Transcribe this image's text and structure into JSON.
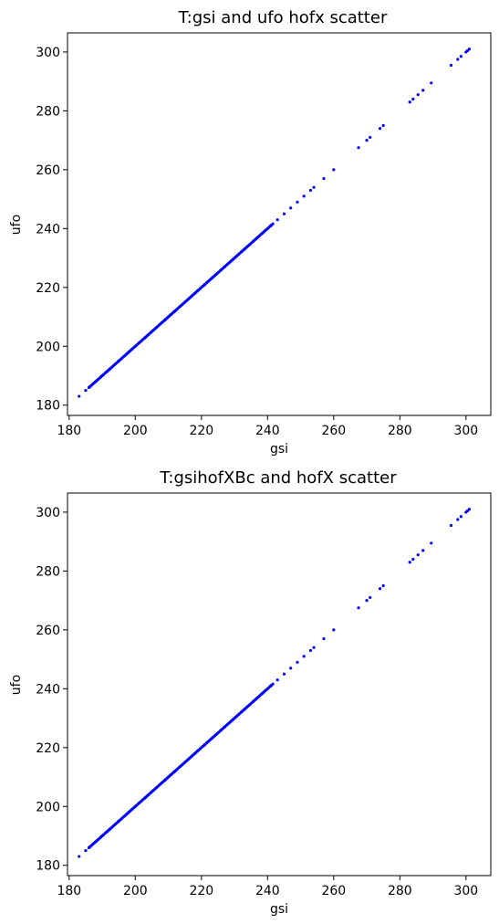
{
  "chart_data": [
    {
      "type": "scatter",
      "title": "T:gsi and ufo hofx scatter",
      "xlabel": "gsi",
      "ylabel": "ufo",
      "xlim": [
        179.5,
        307.5
      ],
      "ylim": [
        176.5,
        306.5
      ],
      "xticks": [
        180,
        200,
        220,
        240,
        260,
        280,
        300
      ],
      "yticks": [
        180,
        200,
        220,
        240,
        260,
        280,
        300
      ],
      "grid": false,
      "series": [
        {
          "color": "#0000ff",
          "x": [
            183,
            185,
            186,
            188,
            190,
            192,
            195,
            198,
            200,
            203,
            206,
            209,
            212,
            215,
            218,
            221,
            224,
            227,
            230,
            233,
            236,
            239,
            241,
            243,
            245,
            247,
            249,
            251,
            253,
            254,
            257,
            260,
            267.5,
            270,
            271,
            274,
            275,
            283,
            284,
            285.5,
            287,
            289.5,
            295.5,
            297.5,
            298.5,
            300,
            300.5,
            301
          ],
          "y": [
            183,
            185,
            186,
            188,
            190,
            192,
            195,
            198,
            200,
            203,
            206,
            209,
            212,
            215,
            218,
            221,
            224,
            227,
            230,
            233,
            236,
            239,
            241,
            243,
            245,
            247,
            249,
            251,
            253,
            254,
            257,
            260,
            267.5,
            270,
            271,
            274,
            275,
            283,
            284,
            285.5,
            287,
            289.5,
            295.5,
            297.5,
            298.5,
            300,
            300.5,
            301
          ],
          "dense_range": [
            186,
            242
          ]
        }
      ]
    },
    {
      "type": "scatter",
      "title": "T:gsihofXBc and hofX scatter",
      "xlabel": "gsi",
      "ylabel": "ufo",
      "xlim": [
        179.5,
        307.5
      ],
      "ylim": [
        176.5,
        306.5
      ],
      "xticks": [
        180,
        200,
        220,
        240,
        260,
        280,
        300
      ],
      "yticks": [
        180,
        200,
        220,
        240,
        260,
        280,
        300
      ],
      "grid": false,
      "series": [
        {
          "color": "#0000ff",
          "x": [
            183,
            185,
            186,
            188,
            190,
            192,
            195,
            198,
            200,
            203,
            206,
            209,
            212,
            215,
            218,
            221,
            224,
            227,
            230,
            233,
            236,
            239,
            241,
            243,
            245,
            247,
            249,
            251,
            253,
            254,
            257,
            260,
            267.5,
            270,
            271,
            274,
            275,
            283,
            284,
            285.5,
            287,
            289.5,
            295.5,
            297.5,
            298.5,
            300,
            300.5,
            301
          ],
          "y": [
            183,
            185,
            186,
            188,
            190,
            192,
            195,
            198,
            200,
            203,
            206,
            209,
            212,
            215,
            218,
            221,
            224,
            227,
            230,
            233,
            236,
            239,
            241,
            243,
            245,
            247,
            249,
            251,
            253,
            254,
            257,
            260,
            267.5,
            270,
            271,
            274,
            275,
            283,
            284,
            285.5,
            287,
            289.5,
            295.5,
            297.5,
            298.5,
            300,
            300.5,
            301
          ],
          "dense_range": [
            186,
            242
          ]
        }
      ]
    }
  ]
}
